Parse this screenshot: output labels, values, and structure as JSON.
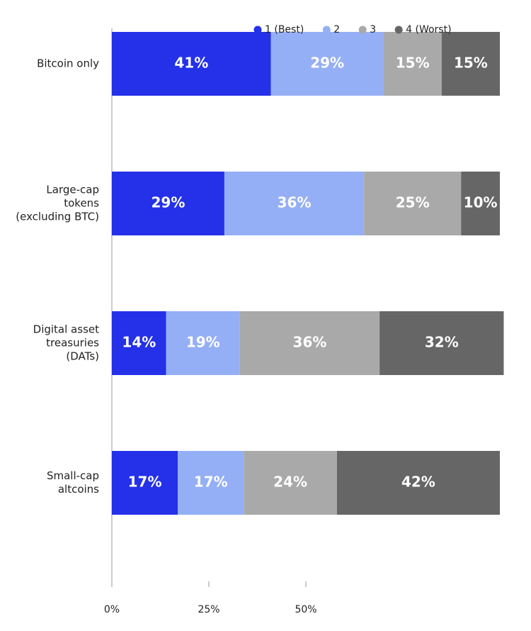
{
  "chart_data": {
    "type": "stacked-bar-horizontal",
    "categories": [
      "Bitcoin only",
      "Large-cap\ntokens\n(excluding BTC)",
      "Digital asset\ntreasuries\n(DATs)",
      "Small-cap\naltcoins"
    ],
    "series": [
      {
        "name": "1 (Best)",
        "color": "#2431e8",
        "values": [
          41,
          29,
          14,
          17
        ],
        "value_labels": [
          "41%",
          "29%",
          "14%",
          "17%"
        ]
      },
      {
        "name": "2",
        "color": "#95aff6",
        "values": [
          29,
          36,
          19,
          17
        ],
        "value_labels": [
          "29%",
          "36%",
          "19%",
          "17%"
        ]
      },
      {
        "name": "3",
        "color": "#a9a9a9",
        "values": [
          15,
          25,
          36,
          24
        ],
        "value_labels": [
          "15%",
          "25%",
          "36%",
          "24%"
        ]
      },
      {
        "name": "4 (Worst)",
        "color": "#666666",
        "values": [
          15,
          10,
          32,
          42
        ],
        "value_labels": [
          "15%",
          "10%",
          "32%",
          "42%"
        ]
      }
    ],
    "xlim": [
      0,
      100
    ],
    "xticks": [
      {
        "value": 0,
        "label": "0%"
      },
      {
        "value": 25,
        "label": "25%"
      },
      {
        "value": 50,
        "label": "50%"
      }
    ],
    "legend": "top-right"
  }
}
